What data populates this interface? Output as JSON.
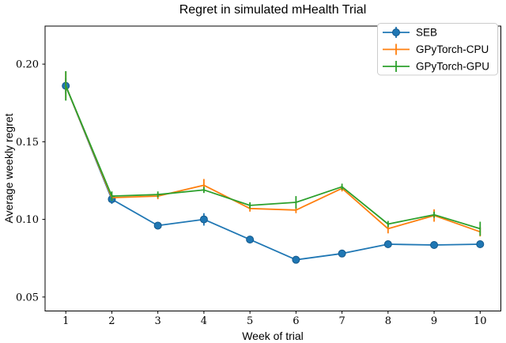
{
  "chart_data": {
    "type": "line",
    "title": "Regret in simulated mHealth Trial",
    "xlabel": "Week of trial",
    "ylabel": "Average weekly regret",
    "x": [
      1,
      2,
      3,
      4,
      5,
      6,
      7,
      8,
      9,
      10
    ],
    "xtick_labels": [
      "1",
      "2",
      "3",
      "4",
      "5",
      "6",
      "7",
      "8",
      "9",
      "10"
    ],
    "yticks": [
      0.05,
      0.1,
      0.15,
      0.2
    ],
    "ytick_labels": [
      "0.05",
      "0.10",
      "0.15",
      "0.20"
    ],
    "xlim": [
      0.55,
      10.45
    ],
    "ylim": [
      0.041,
      0.2245
    ],
    "grid": false,
    "legend_position": "upper right",
    "series": [
      {
        "name": "SEB",
        "color": "#1f77b4",
        "marker": "circle",
        "values": [
          0.186,
          0.113,
          0.096,
          0.1,
          0.087,
          0.074,
          0.078,
          0.084,
          0.0835,
          0.084
        ],
        "errors": [
          0.005,
          0.003,
          0.002,
          0.004,
          0.002,
          0.002,
          0.002,
          0.002,
          0.002,
          0.002
        ]
      },
      {
        "name": "GPyTorch-CPU",
        "color": "#ff7f0e",
        "marker": "errorbar",
        "values": [
          0.186,
          0.114,
          0.115,
          0.122,
          0.107,
          0.106,
          0.12,
          0.094,
          0.1025,
          0.092
        ],
        "errors": [
          0.009,
          0.002,
          0.002,
          0.004,
          0.002,
          0.002,
          0.002,
          0.003,
          0.004,
          0.003
        ]
      },
      {
        "name": "GPyTorch-GPU",
        "color": "#2ca02c",
        "marker": "errorbar",
        "values": [
          0.186,
          0.115,
          0.116,
          0.119,
          0.109,
          0.111,
          0.121,
          0.097,
          0.103,
          0.094
        ],
        "errors": [
          0.0095,
          0.003,
          0.002,
          0.002,
          0.002,
          0.004,
          0.002,
          0.002,
          0.002,
          0.0045
        ]
      }
    ],
    "axis_color": "#000000",
    "legend_border_color": "#cccccc",
    "legend_background": "#ffffff"
  }
}
